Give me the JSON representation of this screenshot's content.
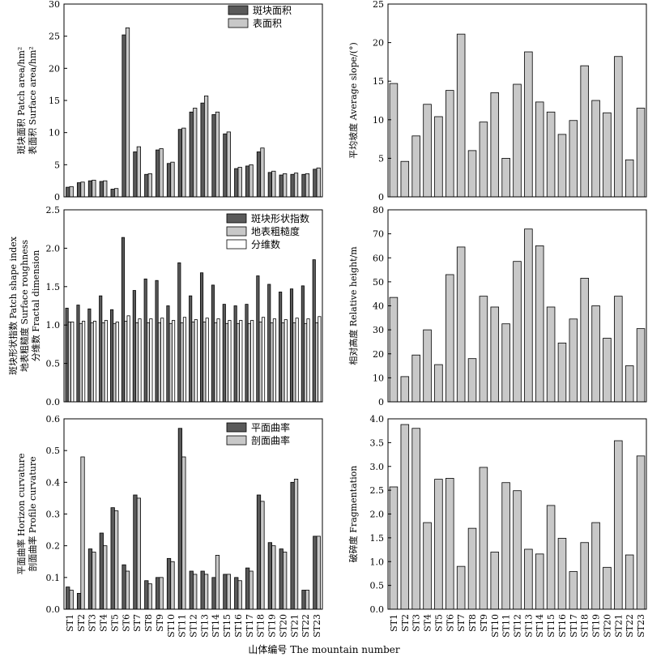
{
  "figure": {
    "xlabel": "山体编号 The mountain number",
    "categories": [
      "ST1",
      "ST2",
      "ST3",
      "ST4",
      "ST5",
      "ST6",
      "ST7",
      "ST8",
      "ST9",
      "ST10",
      "ST11",
      "ST12",
      "ST13",
      "ST14",
      "ST15",
      "ST16",
      "ST17",
      "ST18",
      "ST19",
      "ST20",
      "ST21",
      "ST22",
      "ST23"
    ]
  },
  "colors": {
    "dark": "#5a5a5a",
    "light": "#c8c8c8",
    "white": "#ffffff",
    "axis": "#000000"
  },
  "chart_data": [
    {
      "type": "bar",
      "id": "area",
      "ylabel_lines": [
        "斑块面积 Patch area/hm²",
        "表面积 Surface area/hm²"
      ],
      "ylim": [
        0,
        30
      ],
      "yticks": [
        0,
        5,
        10,
        15,
        20,
        25,
        30
      ],
      "tick_decimals": 0,
      "legend_position": "top-right",
      "series": [
        {
          "name": "斑块面积",
          "color": "dark",
          "values": [
            1.5,
            2.2,
            2.5,
            2.4,
            1.2,
            25.2,
            7.0,
            3.5,
            7.3,
            5.2,
            10.5,
            13.2,
            14.6,
            12.8,
            9.8,
            4.4,
            4.8,
            7.0,
            3.8,
            3.4,
            3.5,
            3.5,
            4.3
          ]
        },
        {
          "name": "表面积",
          "color": "light",
          "values": [
            1.6,
            2.3,
            2.6,
            2.5,
            1.3,
            26.3,
            7.8,
            3.6,
            7.5,
            5.4,
            10.7,
            13.8,
            15.7,
            13.2,
            10.1,
            4.6,
            5.0,
            7.6,
            4.0,
            3.6,
            3.7,
            3.6,
            4.5
          ]
        }
      ]
    },
    {
      "type": "bar",
      "id": "slope",
      "ylabel_lines": [
        "平均坡度 Average slope/(°)"
      ],
      "ylim": [
        0,
        25
      ],
      "yticks": [
        0,
        5,
        10,
        15,
        20,
        25
      ],
      "tick_decimals": 0,
      "series": [
        {
          "name": "",
          "color": "light",
          "values": [
            14.7,
            4.6,
            7.9,
            12.0,
            10.4,
            13.8,
            21.1,
            6.0,
            9.7,
            13.5,
            5.0,
            14.6,
            18.8,
            12.3,
            11.0,
            8.1,
            9.9,
            17.0,
            12.5,
            10.9,
            18.2,
            4.8,
            11.5
          ]
        }
      ]
    },
    {
      "type": "bar",
      "id": "shape",
      "ylabel_lines": [
        "斑块形状指数 Patch shape index",
        "地表粗糙度 Surface roughness",
        "分维数 Fractal dimension"
      ],
      "ylim": [
        0,
        2.5
      ],
      "yticks": [
        0,
        0.5,
        1.0,
        1.5,
        2.0,
        2.5
      ],
      "tick_decimals": 1,
      "legend_position": "top-right",
      "series": [
        {
          "name": "斑块形状指数",
          "color": "dark",
          "values": [
            1.22,
            1.26,
            1.21,
            1.38,
            1.2,
            2.14,
            1.45,
            1.6,
            1.58,
            1.25,
            1.81,
            1.38,
            1.68,
            1.52,
            1.27,
            1.25,
            1.27,
            1.64,
            1.53,
            1.43,
            1.47,
            1.51,
            1.85
          ]
        },
        {
          "name": "地表粗糙度",
          "color": "light",
          "values": [
            1.04,
            1.02,
            1.03,
            1.03,
            1.02,
            1.05,
            1.03,
            1.03,
            1.03,
            1.02,
            1.03,
            1.04,
            1.04,
            1.03,
            1.02,
            1.02,
            1.02,
            1.04,
            1.03,
            1.03,
            1.03,
            1.02,
            1.03
          ]
        },
        {
          "name": "分维数",
          "color": "white",
          "values": [
            1.04,
            1.05,
            1.05,
            1.06,
            1.04,
            1.12,
            1.08,
            1.08,
            1.09,
            1.06,
            1.1,
            1.07,
            1.09,
            1.08,
            1.06,
            1.06,
            1.06,
            1.1,
            1.08,
            1.07,
            1.09,
            1.08,
            1.11
          ]
        }
      ]
    },
    {
      "type": "bar",
      "id": "height",
      "ylabel_lines": [
        "相对高度 Relative height/m"
      ],
      "ylim": [
        0,
        80
      ],
      "yticks": [
        0,
        10,
        20,
        30,
        40,
        50,
        60,
        70,
        80
      ],
      "tick_decimals": 0,
      "series": [
        {
          "name": "",
          "color": "light",
          "values": [
            43.5,
            10.5,
            19.5,
            30.0,
            15.5,
            53.0,
            64.5,
            18.0,
            44.0,
            39.5,
            32.5,
            58.5,
            72.0,
            65.0,
            39.5,
            24.5,
            34.5,
            51.5,
            40.0,
            26.5,
            44.0,
            15.0,
            30.5
          ]
        }
      ]
    },
    {
      "type": "bar",
      "id": "curvature",
      "ylabel_lines": [
        "平面曲率 Horizon curvature",
        "剖面曲率 Profile curvature"
      ],
      "ylim": [
        0,
        0.6
      ],
      "yticks": [
        0,
        0.1,
        0.2,
        0.3,
        0.4,
        0.5,
        0.6
      ],
      "tick_decimals": 1,
      "legend_position": "top-right",
      "series": [
        {
          "name": "平面曲率",
          "color": "dark",
          "values": [
            0.07,
            0.05,
            0.19,
            0.24,
            0.32,
            0.14,
            0.36,
            0.09,
            0.1,
            0.16,
            0.57,
            0.12,
            0.12,
            0.1,
            0.11,
            0.1,
            0.13,
            0.36,
            0.21,
            0.19,
            0.4,
            0.06,
            0.23
          ]
        },
        {
          "name": "剖面曲率",
          "color": "light",
          "values": [
            0.06,
            0.48,
            0.18,
            0.2,
            0.31,
            0.12,
            0.35,
            0.08,
            0.1,
            0.15,
            0.48,
            0.11,
            0.11,
            0.17,
            0.11,
            0.09,
            0.12,
            0.34,
            0.2,
            0.18,
            0.41,
            0.06,
            0.23
          ]
        }
      ]
    },
    {
      "type": "bar",
      "id": "fragmentation",
      "ylabel_lines": [
        "破碎度 Fragmentation"
      ],
      "ylim": [
        0,
        4.0
      ],
      "yticks": [
        0,
        0.5,
        1.0,
        1.5,
        2.0,
        2.5,
        3.0,
        3.5,
        4.0
      ],
      "tick_decimals": 1,
      "series": [
        {
          "name": "",
          "color": "light",
          "values": [
            2.57,
            3.88,
            3.8,
            1.82,
            2.73,
            2.75,
            0.9,
            1.7,
            2.98,
            1.2,
            2.66,
            2.49,
            1.26,
            1.16,
            2.18,
            1.49,
            0.79,
            1.4,
            1.82,
            0.88,
            3.54,
            1.14,
            3.22
          ]
        }
      ]
    }
  ]
}
